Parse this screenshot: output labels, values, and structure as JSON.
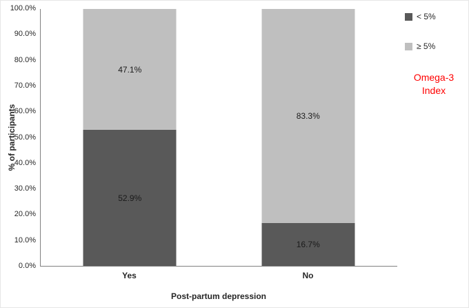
{
  "chart_data": {
    "type": "bar",
    "stacked": true,
    "title": "",
    "xlabel": "Post-partum depression",
    "ylabel": "% of participants",
    "categories": [
      "Yes",
      "No"
    ],
    "series": [
      {
        "name": "< 5%",
        "color": "#595959",
        "values": [
          52.9,
          16.7
        ],
        "labels": [
          "52.9%",
          "16.7%"
        ]
      },
      {
        "name": "≥ 5%",
        "color": "#bfbfbf",
        "values": [
          47.1,
          83.3
        ],
        "labels": [
          "47.1%",
          "83.3%"
        ]
      }
    ],
    "ylim": [
      0,
      100
    ],
    "yticks": [
      "0.0%",
      "10.0%",
      "20.0%",
      "30.0%",
      "40.0%",
      "50.0%",
      "60.0%",
      "70.0%",
      "80.0%",
      "90.0%",
      "100.0%"
    ],
    "grid": false,
    "legend": {
      "position": "right",
      "items": [
        {
          "label": "< 5%",
          "color": "#595959"
        },
        {
          "label": "≥ 5%",
          "color": "#bfbfbf"
        }
      ],
      "title_lines": [
        "Omega-3",
        "Index"
      ],
      "title_color": "#ff0000"
    }
  }
}
